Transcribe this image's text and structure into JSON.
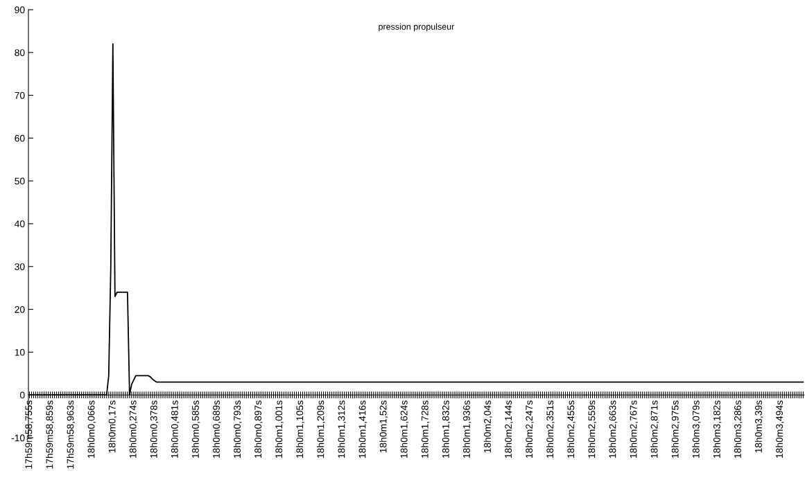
{
  "chart_data": {
    "type": "line",
    "title": "pression propulseur",
    "categories": [
      "17h59m58,755s",
      null,
      null,
      null,
      null,
      null,
      null,
      null,
      null,
      null,
      "17h59m58,859s",
      null,
      null,
      null,
      null,
      null,
      null,
      null,
      null,
      null,
      "17h59m58,963s",
      null,
      null,
      null,
      null,
      null,
      null,
      null,
      null,
      null,
      "18h0m0,066s",
      null,
      null,
      null,
      null,
      null,
      null,
      null,
      null,
      null,
      "18h0m0,17s",
      null,
      null,
      null,
      null,
      null,
      null,
      null,
      null,
      null,
      "18h0m0,274s",
      null,
      null,
      null,
      null,
      null,
      null,
      null,
      null,
      null,
      "18h0m0,378s",
      null,
      null,
      null,
      null,
      null,
      null,
      null,
      null,
      null,
      "18h0m0,481s",
      null,
      null,
      null,
      null,
      null,
      null,
      null,
      null,
      null,
      "18h0m0,585s",
      null,
      null,
      null,
      null,
      null,
      null,
      null,
      null,
      null,
      "18h0m0,689s",
      null,
      null,
      null,
      null,
      null,
      null,
      null,
      null,
      null,
      "18h0m0,793s",
      null,
      null,
      null,
      null,
      null,
      null,
      null,
      null,
      null,
      "18h0m0,897s",
      null,
      null,
      null,
      null,
      null,
      null,
      null,
      null,
      null,
      "18h0m1,001s",
      null,
      null,
      null,
      null,
      null,
      null,
      null,
      null,
      null,
      "18h0m1,105s",
      null,
      null,
      null,
      null,
      null,
      null,
      null,
      null,
      null,
      "18h0m1,209s",
      null,
      null,
      null,
      null,
      null,
      null,
      null,
      null,
      null,
      "18h0m1,312s",
      null,
      null,
      null,
      null,
      null,
      null,
      null,
      null,
      null,
      "18h0m1,416s",
      null,
      null,
      null,
      null,
      null,
      null,
      null,
      null,
      null,
      "18h0m1,52s",
      null,
      null,
      null,
      null,
      null,
      null,
      null,
      null,
      null,
      "18h0m1,624s",
      null,
      null,
      null,
      null,
      null,
      null,
      null,
      null,
      null,
      "18h0m1,728s",
      null,
      null,
      null,
      null,
      null,
      null,
      null,
      null,
      null,
      "18h0m1,832s",
      null,
      null,
      null,
      null,
      null,
      null,
      null,
      null,
      null,
      "18h0m1,936s",
      null,
      null,
      null,
      null,
      null,
      null,
      null,
      null,
      null,
      "18h0m2,04s",
      null,
      null,
      null,
      null,
      null,
      null,
      null,
      null,
      null,
      "18h0m2,144s",
      null,
      null,
      null,
      null,
      null,
      null,
      null,
      null,
      null,
      "18h0m2,247s",
      null,
      null,
      null,
      null,
      null,
      null,
      null,
      null,
      null,
      "18h0m2,351s",
      null,
      null,
      null,
      null,
      null,
      null,
      null,
      null,
      null,
      "18h0m2,455s",
      null,
      null,
      null,
      null,
      null,
      null,
      null,
      null,
      null,
      "18h0m2,559s",
      null,
      null,
      null,
      null,
      null,
      null,
      null,
      null,
      null,
      "18h0m2,663s",
      null,
      null,
      null,
      null,
      null,
      null,
      null,
      null,
      null,
      "18h0m2,767s",
      null,
      null,
      null,
      null,
      null,
      null,
      null,
      null,
      null,
      "18h0m2,871s",
      null,
      null,
      null,
      null,
      null,
      null,
      null,
      null,
      null,
      "18h0m2,975s",
      null,
      null,
      null,
      null,
      null,
      null,
      null,
      null,
      null,
      "18h0m3,079s",
      null,
      null,
      null,
      null,
      null,
      null,
      null,
      null,
      null,
      "18h0m3,182s",
      null,
      null,
      null,
      null,
      null,
      null,
      null,
      null,
      null,
      "18h0m3,286s",
      null,
      null,
      null,
      null,
      null,
      null,
      null,
      null,
      null,
      "18h0m3,39s",
      null,
      null,
      null,
      null,
      null,
      null,
      null,
      null,
      null,
      "18h0m3,494s",
      null,
      null,
      null,
      null,
      null,
      null,
      null,
      null,
      null,
      null,
      null
    ],
    "series": [
      {
        "color": "#000000",
        "values": [
          0,
          0,
          0,
          0,
          0,
          0,
          0,
          0,
          0,
          0,
          0,
          0,
          0,
          0,
          0,
          0,
          0,
          0,
          0,
          0,
          0,
          0,
          0,
          0,
          0,
          0,
          0,
          0,
          0,
          0,
          0,
          0,
          0,
          0,
          0,
          0,
          0,
          0,
          4.5,
          30,
          82,
          23,
          24,
          24,
          24,
          24,
          24,
          24,
          0,
          2.5,
          3.5,
          4.5,
          4.5,
          4.5,
          4.5,
          4.5,
          4.5,
          4.5,
          4.2,
          3.7,
          3.3,
          3,
          3,
          3,
          3,
          3,
          3,
          3,
          3,
          3,
          3,
          3,
          3,
          3,
          3,
          3,
          3,
          3,
          3,
          3,
          3,
          3,
          3,
          3,
          3,
          3,
          3,
          3,
          3,
          3,
          3,
          3,
          3,
          3,
          3,
          3,
          3,
          3,
          3,
          3,
          3,
          3,
          3,
          3,
          3,
          3,
          3,
          3,
          3,
          3,
          3,
          3,
          3,
          3,
          3,
          3,
          3,
          3,
          3,
          3,
          3,
          3,
          3,
          3,
          3,
          3,
          3,
          3,
          3,
          3,
          3,
          3,
          3,
          3,
          3,
          3,
          3,
          3,
          3,
          3,
          3,
          3,
          3,
          3,
          3,
          3,
          3,
          3,
          3,
          3,
          3,
          3,
          3,
          3,
          3,
          3,
          3,
          3,
          3,
          3,
          3,
          3,
          3,
          3,
          3,
          3,
          3,
          3,
          3,
          3,
          3,
          3,
          3,
          3,
          3,
          3,
          3,
          3,
          3,
          3,
          3,
          3,
          3,
          3,
          3,
          3,
          3,
          3,
          3,
          3,
          3,
          3,
          3,
          3,
          3,
          3,
          3,
          3,
          3,
          3,
          3,
          3,
          3,
          3,
          3,
          3,
          3,
          3,
          3,
          3,
          3,
          3,
          3,
          3,
          3,
          3,
          3,
          3,
          3,
          3,
          3,
          3,
          3,
          3,
          3,
          3,
          3,
          3,
          3,
          3,
          3,
          3,
          3,
          3,
          3,
          3,
          3,
          3,
          3,
          3,
          3,
          3,
          3,
          3,
          3,
          3,
          3,
          3,
          3,
          3,
          3,
          3,
          3,
          3,
          3,
          3,
          3,
          3,
          3,
          3,
          3,
          3,
          3,
          3,
          3,
          3,
          3,
          3,
          3,
          3,
          3,
          3,
          3,
          3,
          3,
          3,
          3,
          3,
          3,
          3,
          3,
          3,
          3,
          3,
          3,
          3,
          3,
          3,
          3,
          3,
          3,
          3,
          3,
          3,
          3,
          3,
          3,
          3,
          3,
          3,
          3,
          3,
          3,
          3,
          3,
          3,
          3,
          3,
          3,
          3,
          3,
          3,
          3,
          3,
          3,
          3,
          3,
          3,
          3,
          3,
          3,
          3,
          3,
          3,
          3,
          3,
          3,
          3,
          3,
          3,
          3,
          3,
          3,
          3,
          3,
          3,
          3,
          3,
          3,
          3,
          3,
          3,
          3,
          3,
          3,
          3,
          3,
          3,
          3,
          3,
          3,
          3,
          3,
          3,
          3,
          3,
          3,
          3,
          3,
          3,
          3,
          3,
          3,
          3,
          3,
          3,
          3,
          3,
          3,
          3,
          3,
          3
        ]
      }
    ],
    "ylim": [
      -10,
      90
    ],
    "yticks": [
      -10,
      0,
      10,
      20,
      30,
      40,
      50,
      60,
      70,
      80,
      90
    ],
    "marker": "none",
    "line_style": "solid",
    "grid": false,
    "legend": false
  }
}
